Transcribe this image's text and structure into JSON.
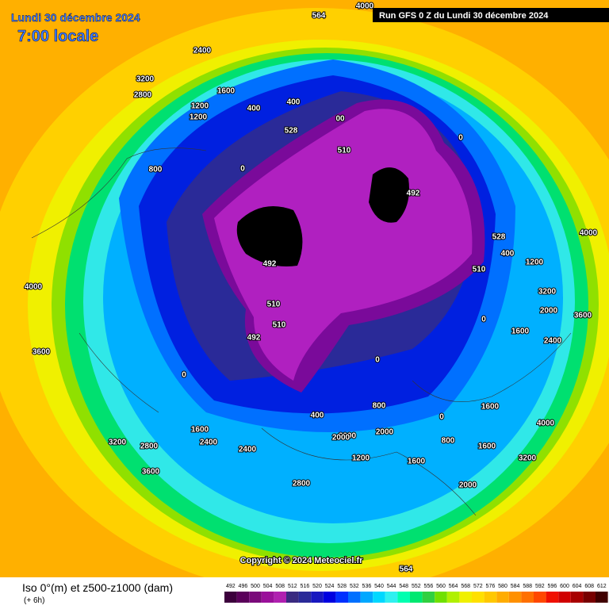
{
  "header": {
    "date": "Lundi 30 décembre 2024",
    "time": "7:00 locale",
    "run": "Run GFS 0 Z du Lundi 30 décembre 2024"
  },
  "map": {
    "copyright": "Copyright © 2024 Meteociel.fr",
    "labels": [
      "4000",
      "564",
      "2400",
      "3200",
      "2800",
      "1600",
      "1200",
      "400",
      "400",
      "528",
      "00",
      "510",
      "0",
      "492",
      "492",
      "510",
      "510",
      "492",
      "0",
      "800",
      "800",
      "400",
      "1200",
      "4000",
      "2000",
      "1600",
      "3600",
      "3200",
      "2800",
      "2400",
      "1600",
      "2400",
      "2000",
      "1200",
      "800",
      "1600",
      "2000",
      "4000",
      "3600",
      "4000",
      "0",
      "1600",
      "3600",
      "2800",
      "3200",
      "564",
      "0",
      "0",
      "528",
      "510",
      "400",
      "1200",
      "2000",
      "1600",
      "2400",
      "3200",
      "0",
      "2000"
    ]
  },
  "legend": {
    "title": "Iso 0°(m) et z500-z1000 (dam)",
    "step": "(+ 6h)",
    "labels": [
      "492",
      "496",
      "500",
      "504",
      "508",
      "512",
      "516",
      "520",
      "524",
      "528",
      "532",
      "536",
      "540",
      "544",
      "548",
      "552",
      "556",
      "560",
      "564",
      "568",
      "572",
      "576",
      "580",
      "584",
      "588",
      "592",
      "596",
      "600",
      "604",
      "608",
      "612"
    ],
    "colors": [
      "#3c003c",
      "#5a005a",
      "#7a0a7a",
      "#9a109a",
      "#b020b0",
      "#3a2a80",
      "#2a2a98",
      "#1818c0",
      "#0000e0",
      "#0030ff",
      "#0070ff",
      "#00a8ff",
      "#00d8ff",
      "#30f0f0",
      "#00ffb0",
      "#00e870",
      "#30d040",
      "#70e000",
      "#b0f000",
      "#f0f000",
      "#ffe000",
      "#ffc800",
      "#ffac00",
      "#ff9000",
      "#ff7000",
      "#ff4800",
      "#f01000",
      "#d00000",
      "#a80000",
      "#780000",
      "#400000"
    ]
  }
}
